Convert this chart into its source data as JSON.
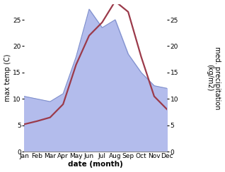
{
  "months": [
    "Jan",
    "Feb",
    "Mar",
    "Apr",
    "May",
    "Jun",
    "Jul",
    "Aug",
    "Sep",
    "Oct",
    "Nov",
    "Dec"
  ],
  "x": [
    1,
    2,
    3,
    4,
    5,
    6,
    7,
    8,
    9,
    10,
    11,
    12
  ],
  "precipitation": [
    10.5,
    10.0,
    9.5,
    11.0,
    18.0,
    27.0,
    23.5,
    25.0,
    18.5,
    15.0,
    12.5,
    12.0
  ],
  "temperature": [
    5.2,
    5.8,
    6.5,
    9.0,
    16.5,
    22.0,
    24.5,
    28.5,
    26.5,
    18.0,
    10.5,
    8.0
  ],
  "temp_color": "#9b3a4a",
  "precip_fill_color": "#b3bcec",
  "precip_line_color": "#8090cc",
  "ylabel_left": "max temp (C)",
  "ylabel_right": "med. precipitation\n(kg/m2)",
  "xlabel": "date (month)",
  "ylim": [
    0,
    28
  ],
  "yticks": [
    0,
    5,
    10,
    15,
    20,
    25
  ],
  "bg_color": "#ffffff",
  "label_fontsize": 7,
  "tick_fontsize": 6.5,
  "xlabel_fontsize": 7.5
}
